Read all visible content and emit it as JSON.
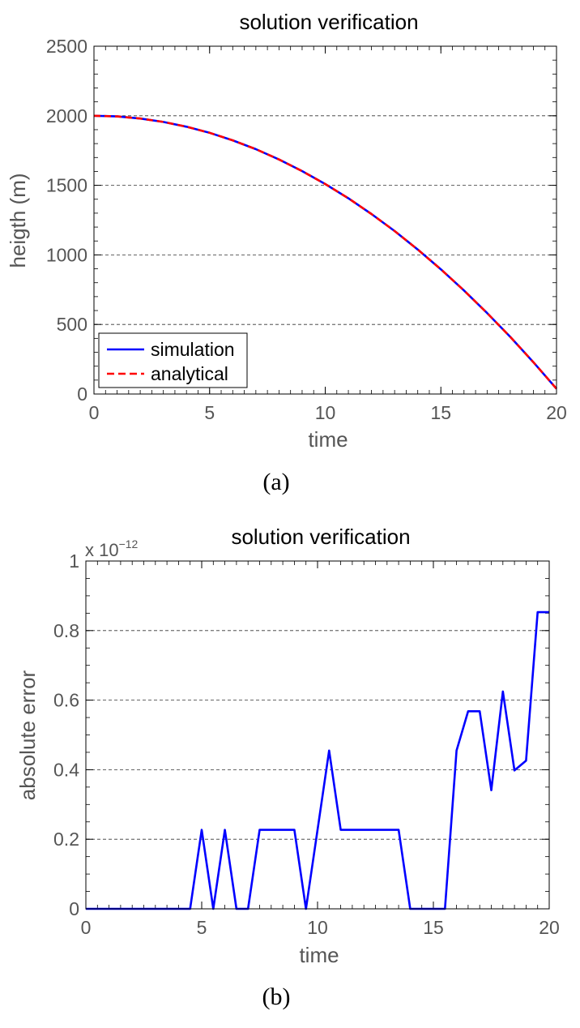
{
  "chart_data": [
    {
      "type": "line",
      "title": "solution verification",
      "xlabel": "time",
      "ylabel": "heigth (m)",
      "caption": "(a)",
      "xlim": [
        0,
        20
      ],
      "ylim": [
        0,
        2500
      ],
      "xticks": [
        "0",
        "5",
        "10",
        "15",
        "20"
      ],
      "yticks": [
        "0",
        "500",
        "1000",
        "1500",
        "2000",
        "2500"
      ],
      "grid": "horizontal dashed",
      "legend_position": "bottom-left",
      "x": [
        0,
        1,
        2,
        3,
        4,
        5,
        6,
        7,
        8,
        9,
        10,
        11,
        12,
        13,
        14,
        15,
        16,
        17,
        18,
        19,
        20
      ],
      "series": [
        {
          "name": "simulation",
          "color": "#0000ff",
          "style": "solid",
          "values": [
            2000,
            1995.1,
            1980.4,
            1955.9,
            1921.5,
            1877.4,
            1823.4,
            1759.7,
            1686.1,
            1602.7,
            1509.5,
            1406.5,
            1293.7,
            1171.1,
            1038.6,
            896.4,
            744.3,
            582.4,
            410.8,
            229.3,
            38
          ]
        },
        {
          "name": "analytical",
          "color": "#ff0000",
          "style": "dashed",
          "values": [
            2000,
            1995.1,
            1980.4,
            1955.9,
            1921.5,
            1877.4,
            1823.4,
            1759.7,
            1686.1,
            1602.7,
            1509.5,
            1406.5,
            1293.7,
            1171.1,
            1038.6,
            896.4,
            744.3,
            582.4,
            410.8,
            229.3,
            38
          ]
        }
      ]
    },
    {
      "type": "line",
      "title": "solution verification",
      "xlabel": "time",
      "ylabel": "absolute error",
      "caption": "(b)",
      "multiplier": "x 10",
      "multiplier_exponent": "−12",
      "xlim": [
        0,
        20
      ],
      "ylim": [
        0,
        1
      ],
      "xticks": [
        "0",
        "5",
        "10",
        "15",
        "20"
      ],
      "yticks": [
        "0",
        "0.2",
        "0.4",
        "0.6",
        "0.8",
        "1"
      ],
      "grid": "horizontal dashed",
      "x": [
        0,
        0.5,
        1,
        1.5,
        2,
        2.5,
        3,
        3.5,
        4,
        4.5,
        5,
        5.5,
        6,
        6.5,
        7,
        7.5,
        8,
        8.5,
        9,
        9.5,
        10,
        10.5,
        11,
        11.5,
        12,
        12.5,
        13,
        13.5,
        14,
        14.5,
        15,
        15.5,
        16,
        16.5,
        17,
        17.5,
        18,
        18.5,
        19,
        19.5,
        20
      ],
      "series": [
        {
          "color": "#0000ff",
          "values": [
            0,
            0,
            0,
            0,
            0,
            0,
            0,
            0,
            0,
            0,
            0.227,
            0,
            0.227,
            0,
            0,
            0.227,
            0.227,
            0.227,
            0.227,
            0,
            0.227,
            0.455,
            0.227,
            0.227,
            0.227,
            0.227,
            0.227,
            0.227,
            0,
            0,
            0,
            0,
            0.455,
            0.568,
            0.568,
            0.341,
            0.625,
            0.398,
            0.426,
            0.853,
            0.853
          ]
        }
      ]
    }
  ]
}
